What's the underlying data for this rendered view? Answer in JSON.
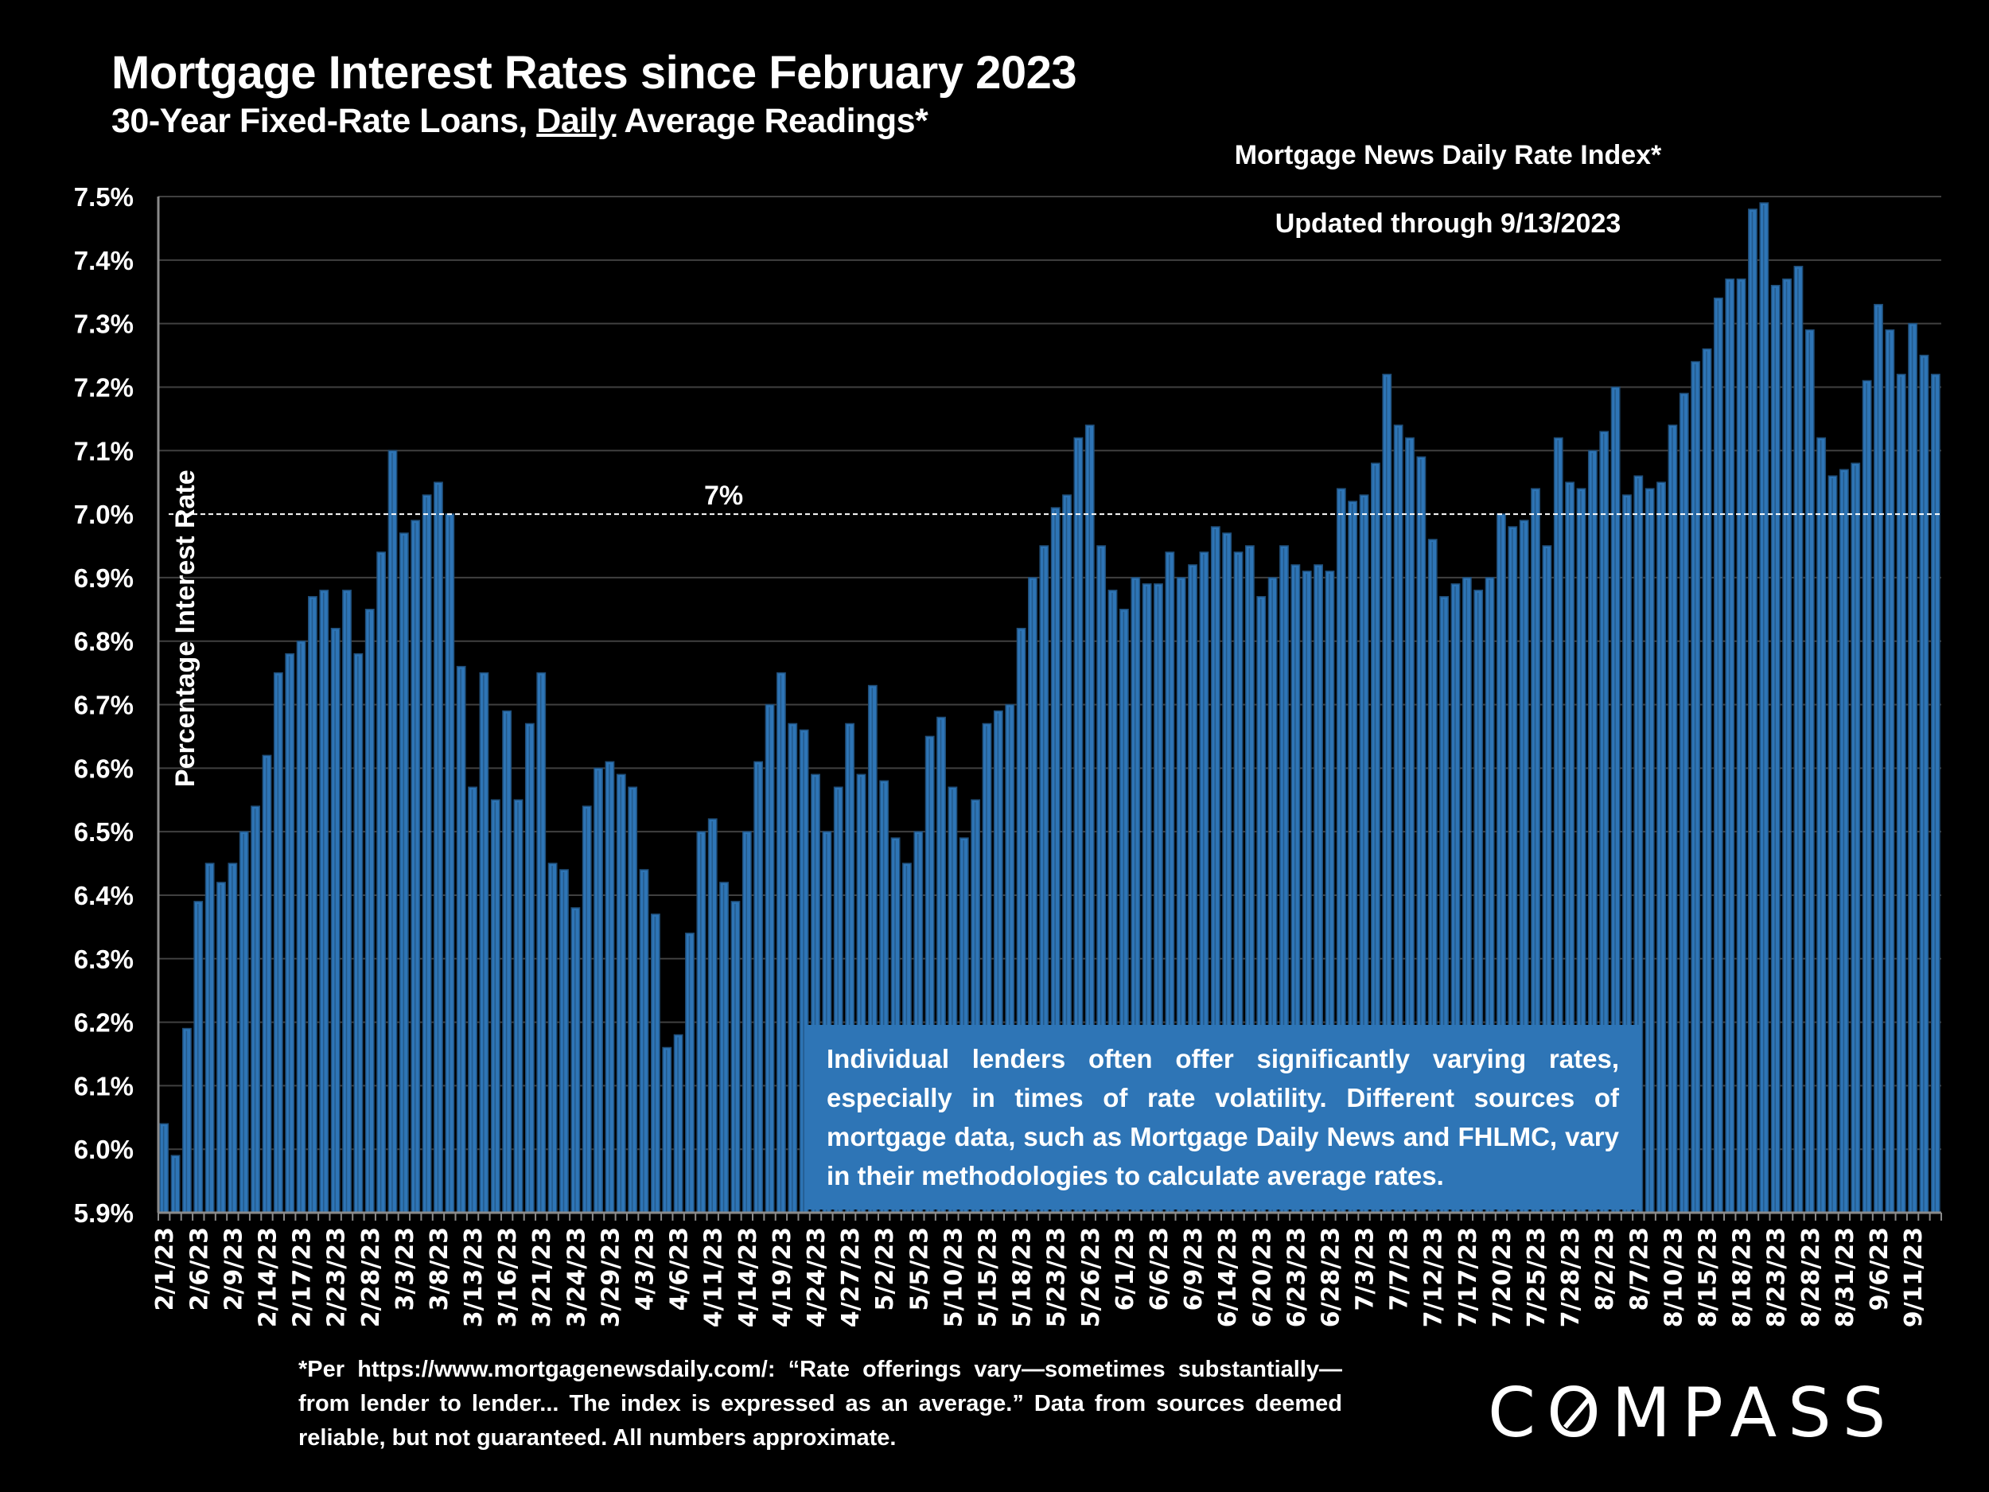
{
  "header": {
    "title": "Mortgage Interest Rates since February 2023",
    "subtitle_prefix": "30-Year Fixed-Rate Loans, ",
    "subtitle_underlined": "Daily",
    "subtitle_suffix": " Average Readings*",
    "index_title": "Mortgage News Daily Rate Index*",
    "updated": "Updated through 9/13/2023"
  },
  "note": "Individual lenders often offer significantly varying rates, especially in times of rate volatility. Different sources of mortgage data, such as Mortgage Daily News and FHLMC, vary in their methodologies to calculate average rates.",
  "footer": "*Per https://www.mortgagenewsdaily.com/: “Rate offerings vary—sometimes substantially—from lender to lender... The index is expressed as an average.” Data from sources deemed reliable, but not guaranteed. All numbers approximate.",
  "brand": "COMPASS",
  "colors": {
    "bar": "#2e75b6",
    "bar_edge": "#1f4e79",
    "grid": "#404040",
    "background": "#000000",
    "note_bg": "#2e75b6"
  },
  "chart_data": {
    "type": "bar",
    "title": "Mortgage Interest Rates since February 2023",
    "subtitle": "30-Year Fixed-Rate Loans, Daily Average Readings*",
    "xlabel": "",
    "ylabel": "Percentage Interest Rate",
    "ylim": [
      5.9,
      7.5
    ],
    "yticks": [
      "5.9%",
      "6.0%",
      "6.1%",
      "6.2%",
      "6.3%",
      "6.4%",
      "6.5%",
      "6.6%",
      "6.7%",
      "6.8%",
      "6.9%",
      "7.0%",
      "7.1%",
      "7.2%",
      "7.3%",
      "7.4%",
      "7.5%"
    ],
    "grid": true,
    "reference_line": {
      "value": 7.0,
      "label": "7%",
      "style": "dashed"
    },
    "x_tick_labels": [
      "2/1/23",
      "2/6/23",
      "2/9/23",
      "2/14/23",
      "2/17/23",
      "2/23/23",
      "2/28/23",
      "3/3/23",
      "3/8/23",
      "3/13/23",
      "3/16/23",
      "3/21/23",
      "3/24/23",
      "3/29/23",
      "4/3/23",
      "4/6/23",
      "4/11/23",
      "4/14/23",
      "4/19/23",
      "4/24/23",
      "4/27/23",
      "5/2/23",
      "5/5/23",
      "5/10/23",
      "5/15/23",
      "5/18/23",
      "5/23/23",
      "5/26/23",
      "6/1/23",
      "6/6/23",
      "6/9/23",
      "6/14/23",
      "6/20/23",
      "6/23/23",
      "6/28/23",
      "7/3/23",
      "7/7/23",
      "7/12/23",
      "7/17/23",
      "7/20/23",
      "7/25/23",
      "7/28/23",
      "8/2/23",
      "8/7/23",
      "8/10/23",
      "8/15/23",
      "8/18/23",
      "8/23/23",
      "8/28/23",
      "8/31/23",
      "9/6/23",
      "9/11/23"
    ],
    "label_every": 3,
    "series": [
      {
        "name": "Mortgage News Daily Rate Index (30-yr fixed, %)",
        "values": [
          6.04,
          5.99,
          6.19,
          6.39,
          6.45,
          6.42,
          6.45,
          6.5,
          6.54,
          6.62,
          6.75,
          6.78,
          6.8,
          6.87,
          6.88,
          6.82,
          6.88,
          6.78,
          6.85,
          6.94,
          7.1,
          6.97,
          6.99,
          7.03,
          7.05,
          7.0,
          6.76,
          6.57,
          6.75,
          6.55,
          6.69,
          6.55,
          6.67,
          6.75,
          6.45,
          6.44,
          6.38,
          6.54,
          6.6,
          6.61,
          6.59,
          6.57,
          6.44,
          6.37,
          6.16,
          6.18,
          6.34,
          6.5,
          6.52,
          6.42,
          6.39,
          6.5,
          6.61,
          6.7,
          6.75,
          6.67,
          6.66,
          6.59,
          6.5,
          6.57,
          6.67,
          6.59,
          6.73,
          6.58,
          6.49,
          6.45,
          6.5,
          6.65,
          6.68,
          6.57,
          6.49,
          6.55,
          6.67,
          6.69,
          6.7,
          6.82,
          6.9,
          6.95,
          7.01,
          7.03,
          7.12,
          7.14,
          6.95,
          6.88,
          6.85,
          6.9,
          6.89,
          6.89,
          6.94,
          6.9,
          6.92,
          6.94,
          6.98,
          6.97,
          6.94,
          6.95,
          6.87,
          6.9,
          6.95,
          6.92,
          6.91,
          6.92,
          6.91,
          7.04,
          7.02,
          7.03,
          7.08,
          7.22,
          7.14,
          7.12,
          7.09,
          6.96,
          6.87,
          6.89,
          6.9,
          6.88,
          6.9,
          7.0,
          6.98,
          6.99,
          7.04,
          6.95,
          7.12,
          7.05,
          7.04,
          7.1,
          7.13,
          7.2,
          7.03,
          7.06,
          7.04,
          7.05,
          7.14,
          7.19,
          7.24,
          7.26,
          7.34,
          7.37,
          7.37,
          7.48,
          7.49,
          7.36,
          7.37,
          7.39,
          7.29,
          7.12,
          7.06,
          7.07,
          7.08,
          7.21,
          7.33,
          7.29,
          7.22,
          7.3,
          7.25,
          7.22
        ]
      }
    ]
  }
}
